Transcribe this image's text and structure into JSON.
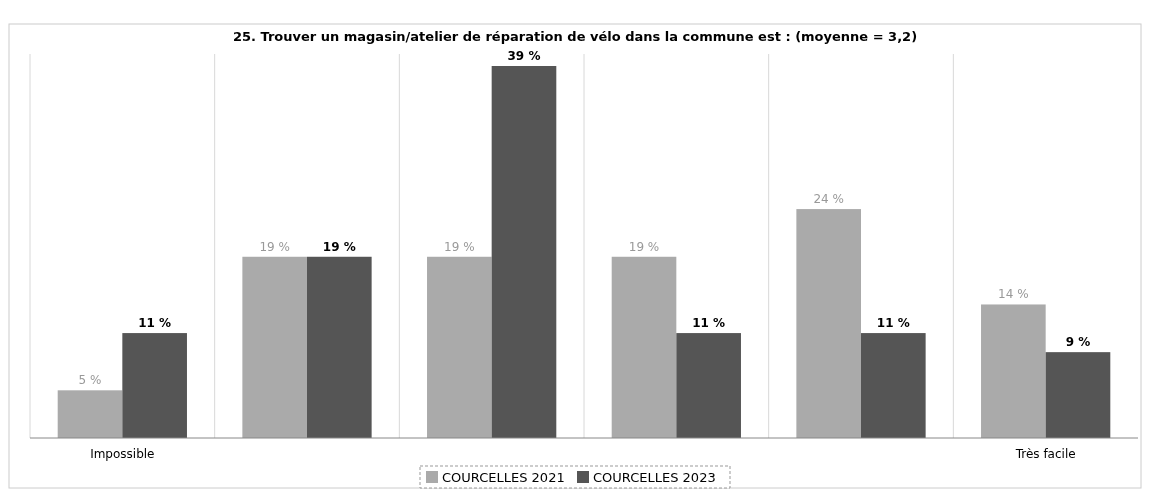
{
  "chart_data": {
    "type": "bar",
    "title": "25. Trouver un magasin/atelier de réparation de vélo dans la commune est : (moyenne = 3,2)",
    "categories": [
      "Impossible",
      null,
      null,
      null,
      null,
      "Très facile"
    ],
    "series": [
      {
        "name": "COURCELLES 2021",
        "color": "#aaaaaa",
        "values": [
          5,
          19,
          19,
          19,
          24,
          14
        ],
        "value_labels": [
          "5 %",
          "19 %",
          "19 %",
          "19 %",
          "24 %",
          "14 %"
        ]
      },
      {
        "name": "COURCELLES 2023",
        "color": "#555555",
        "values": [
          11,
          19,
          39,
          11,
          11,
          9
        ],
        "value_labels": [
          "11 %",
          "19 %",
          "39 %",
          "11 %",
          "11 %",
          "9 %"
        ]
      }
    ],
    "grid": "x",
    "legend": "bottom"
  }
}
